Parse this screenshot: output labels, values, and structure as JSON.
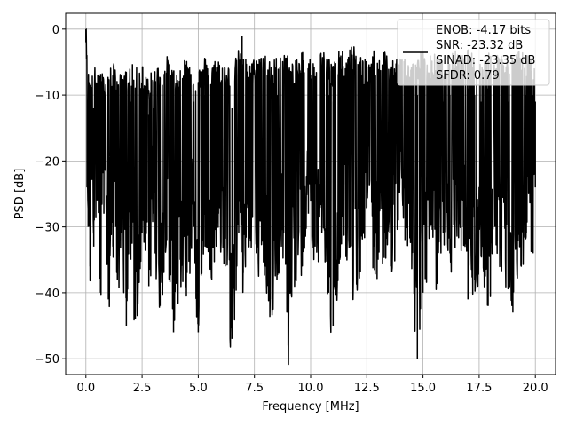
{
  "chart_data": {
    "type": "line",
    "title": "",
    "xlabel": "Frequency [MHz]",
    "ylabel": "PSD [dB]",
    "xlim": [
      -0.9,
      20.9
    ],
    "ylim": [
      -52.4,
      2.4
    ],
    "xticks": [
      0.0,
      2.5,
      5.0,
      7.5,
      10.0,
      12.5,
      15.0,
      17.5,
      20.0
    ],
    "xtick_labels": [
      "0.0",
      "2.5",
      "5.0",
      "7.5",
      "10.0",
      "12.5",
      "15.0",
      "17.5",
      "20.0"
    ],
    "yticks": [
      0,
      -10,
      -20,
      -30,
      -40,
      -50
    ],
    "ytick_labels": [
      "0",
      "−10",
      "−20",
      "−30",
      "−40",
      "−50"
    ],
    "grid": true,
    "legend_position": "top-right",
    "series": [
      {
        "color": "#000000",
        "x": [
          0.0,
          0.02,
          0.05,
          0.1,
          0.18,
          0.25,
          0.35,
          0.5,
          0.65,
          0.8,
          1.0,
          1.2,
          1.4,
          1.6,
          1.8,
          2.0,
          2.2,
          2.5,
          2.8,
          3.0,
          3.3,
          3.6,
          3.9,
          4.2,
          4.5,
          4.8,
          5.0,
          5.3,
          5.6,
          5.9,
          6.2,
          6.5,
          6.8,
          7.0,
          7.3,
          7.6,
          7.9,
          8.2,
          8.5,
          8.8,
          9.0,
          9.3,
          9.6,
          9.9,
          10.2,
          10.5,
          10.8,
          11.0,
          11.3,
          11.6,
          11.9,
          12.2,
          12.5,
          12.8,
          13.0,
          13.3,
          13.6,
          13.9,
          14.2,
          14.5,
          14.75,
          15.0,
          15.3,
          15.6,
          15.9,
          16.2,
          16.5,
          16.8,
          17.0,
          17.3,
          17.6,
          17.9,
          18.2,
          18.5,
          18.8,
          19.0,
          19.3,
          19.6,
          19.9,
          20.0
        ],
        "y": [
          0,
          -8,
          -24,
          -30,
          -36,
          -20,
          -33,
          -26,
          -40,
          -28,
          -41,
          -33,
          -38,
          -31,
          -45,
          -35,
          -44,
          -31,
          -39,
          -28,
          -42,
          -32,
          -46,
          -35,
          -37,
          -30,
          -46,
          -33,
          -38,
          -28,
          -36,
          -47,
          -31,
          -37,
          -30,
          -34,
          -33,
          -41,
          -38,
          -31,
          -48,
          -35,
          -36,
          -28,
          -33,
          -31,
          -40,
          -45,
          -35,
          -31,
          -38,
          -35,
          -27,
          -33,
          -35,
          -31,
          -36,
          -29,
          -32,
          -33,
          -50,
          -40,
          -31,
          -36,
          -31,
          -34,
          -29,
          -30,
          -41,
          -38,
          -33,
          -42,
          -30,
          -33,
          -37,
          -43,
          -33,
          -31,
          -34,
          -24
        ],
        "envelope_top": [
          0,
          -6,
          -8,
          -10,
          -10,
          -11,
          -10,
          -9,
          -10,
          -11,
          -10,
          -9,
          -10,
          -11,
          -10,
          -9,
          -10,
          -9,
          -11,
          -10,
          -9,
          -8,
          -10,
          -9,
          -8,
          -9,
          -10,
          -8,
          -9,
          -8,
          -9,
          -10,
          -7,
          -8,
          -9,
          -8,
          -7,
          -9,
          -8,
          -7,
          -8,
          -9,
          -7,
          -8,
          -9,
          -7,
          -8,
          -9,
          -7,
          -8,
          -6,
          -8,
          -9,
          -7,
          -8,
          -7,
          -9,
          -8,
          -7,
          -9,
          -8,
          -7,
          -8,
          -7,
          -9,
          -8,
          -7,
          -8,
          -7,
          -8,
          -9,
          -7,
          -8,
          -7,
          -9,
          -8,
          -7,
          -8,
          -8,
          -9
        ],
        "spikes_up": [
          [
            6.95,
            -1
          ],
          [
            10.0,
            -7
          ],
          [
            12.42,
            -4.5
          ],
          [
            17.8,
            -5
          ]
        ]
      }
    ],
    "legend": {
      "lines": [
        "ENOB: -4.17 bits",
        "SNR: -23.32 dB",
        "SINAD: -23.35 dB",
        "SFDR: 0.79"
      ]
    }
  }
}
